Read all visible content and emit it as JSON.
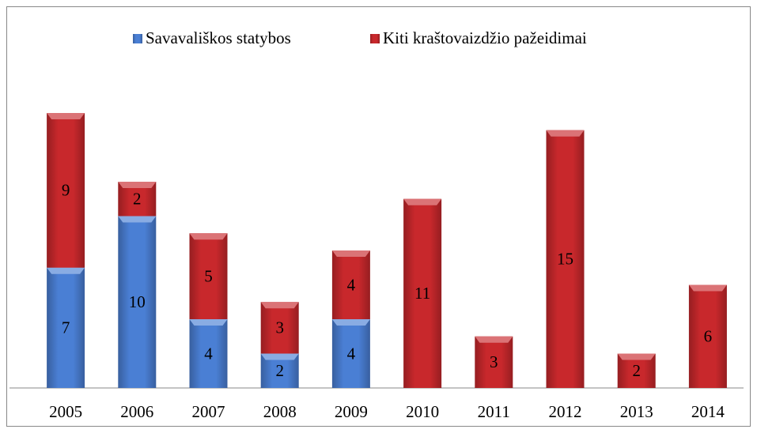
{
  "chart_data": {
    "type": "stacked_bar",
    "categories": [
      "2005",
      "2006",
      "2007",
      "2008",
      "2009",
      "2010",
      "2011",
      "2012",
      "2013",
      "2014"
    ],
    "series": [
      {
        "name": "Savavališkos statybos",
        "color": "#4a7fd4",
        "values": [
          7,
          10,
          4,
          2,
          4,
          null,
          null,
          null,
          null,
          null
        ]
      },
      {
        "name": "Kiti kraštovaizdžio pažeidimai",
        "color": "#c8282c",
        "values": [
          9,
          2,
          5,
          3,
          4,
          11,
          3,
          15,
          2,
          6
        ]
      }
    ],
    "legend": "top"
  }
}
